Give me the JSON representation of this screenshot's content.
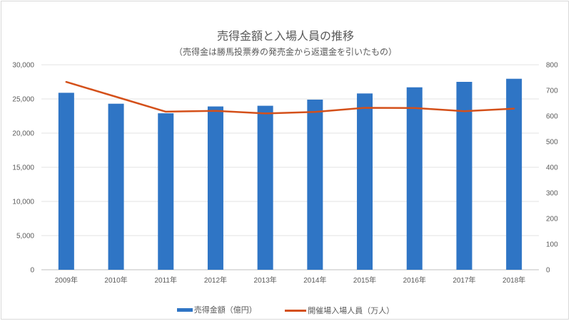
{
  "chart_data": {
    "type": "bar+line",
    "title": "売得金額と入場人員の推移",
    "subtitle": "（売得金は勝馬投票券の発売金から返還金を引いたもの）",
    "categories": [
      "2009年",
      "2010年",
      "2011年",
      "2012年",
      "2013年",
      "2014年",
      "2015年",
      "2016年",
      "2017年",
      "2018年"
    ],
    "series": [
      {
        "name": "売得金額（億円）",
        "type": "bar",
        "axis": "left",
        "color": "#2f75c5",
        "values": [
          25900,
          24300,
          22900,
          23900,
          24000,
          24900,
          25800,
          26700,
          27500,
          27950
        ]
      },
      {
        "name": "開催場入場人員（万人）",
        "type": "line",
        "axis": "right",
        "color": "#d4501a",
        "values": [
          733,
          675,
          617,
          620,
          610,
          616,
          632,
          631,
          619,
          629
        ]
      }
    ],
    "y_left": {
      "min": 0,
      "max": 30000,
      "ticks": [
        "0",
        "5,000",
        "10,000",
        "15,000",
        "20,000",
        "25,000",
        "30,000"
      ]
    },
    "y_right": {
      "min": 0,
      "max": 800,
      "ticks": [
        "0",
        "100",
        "200",
        "300",
        "400",
        "500",
        "600",
        "700",
        "800"
      ]
    },
    "grid": true,
    "legend": "bottom"
  }
}
